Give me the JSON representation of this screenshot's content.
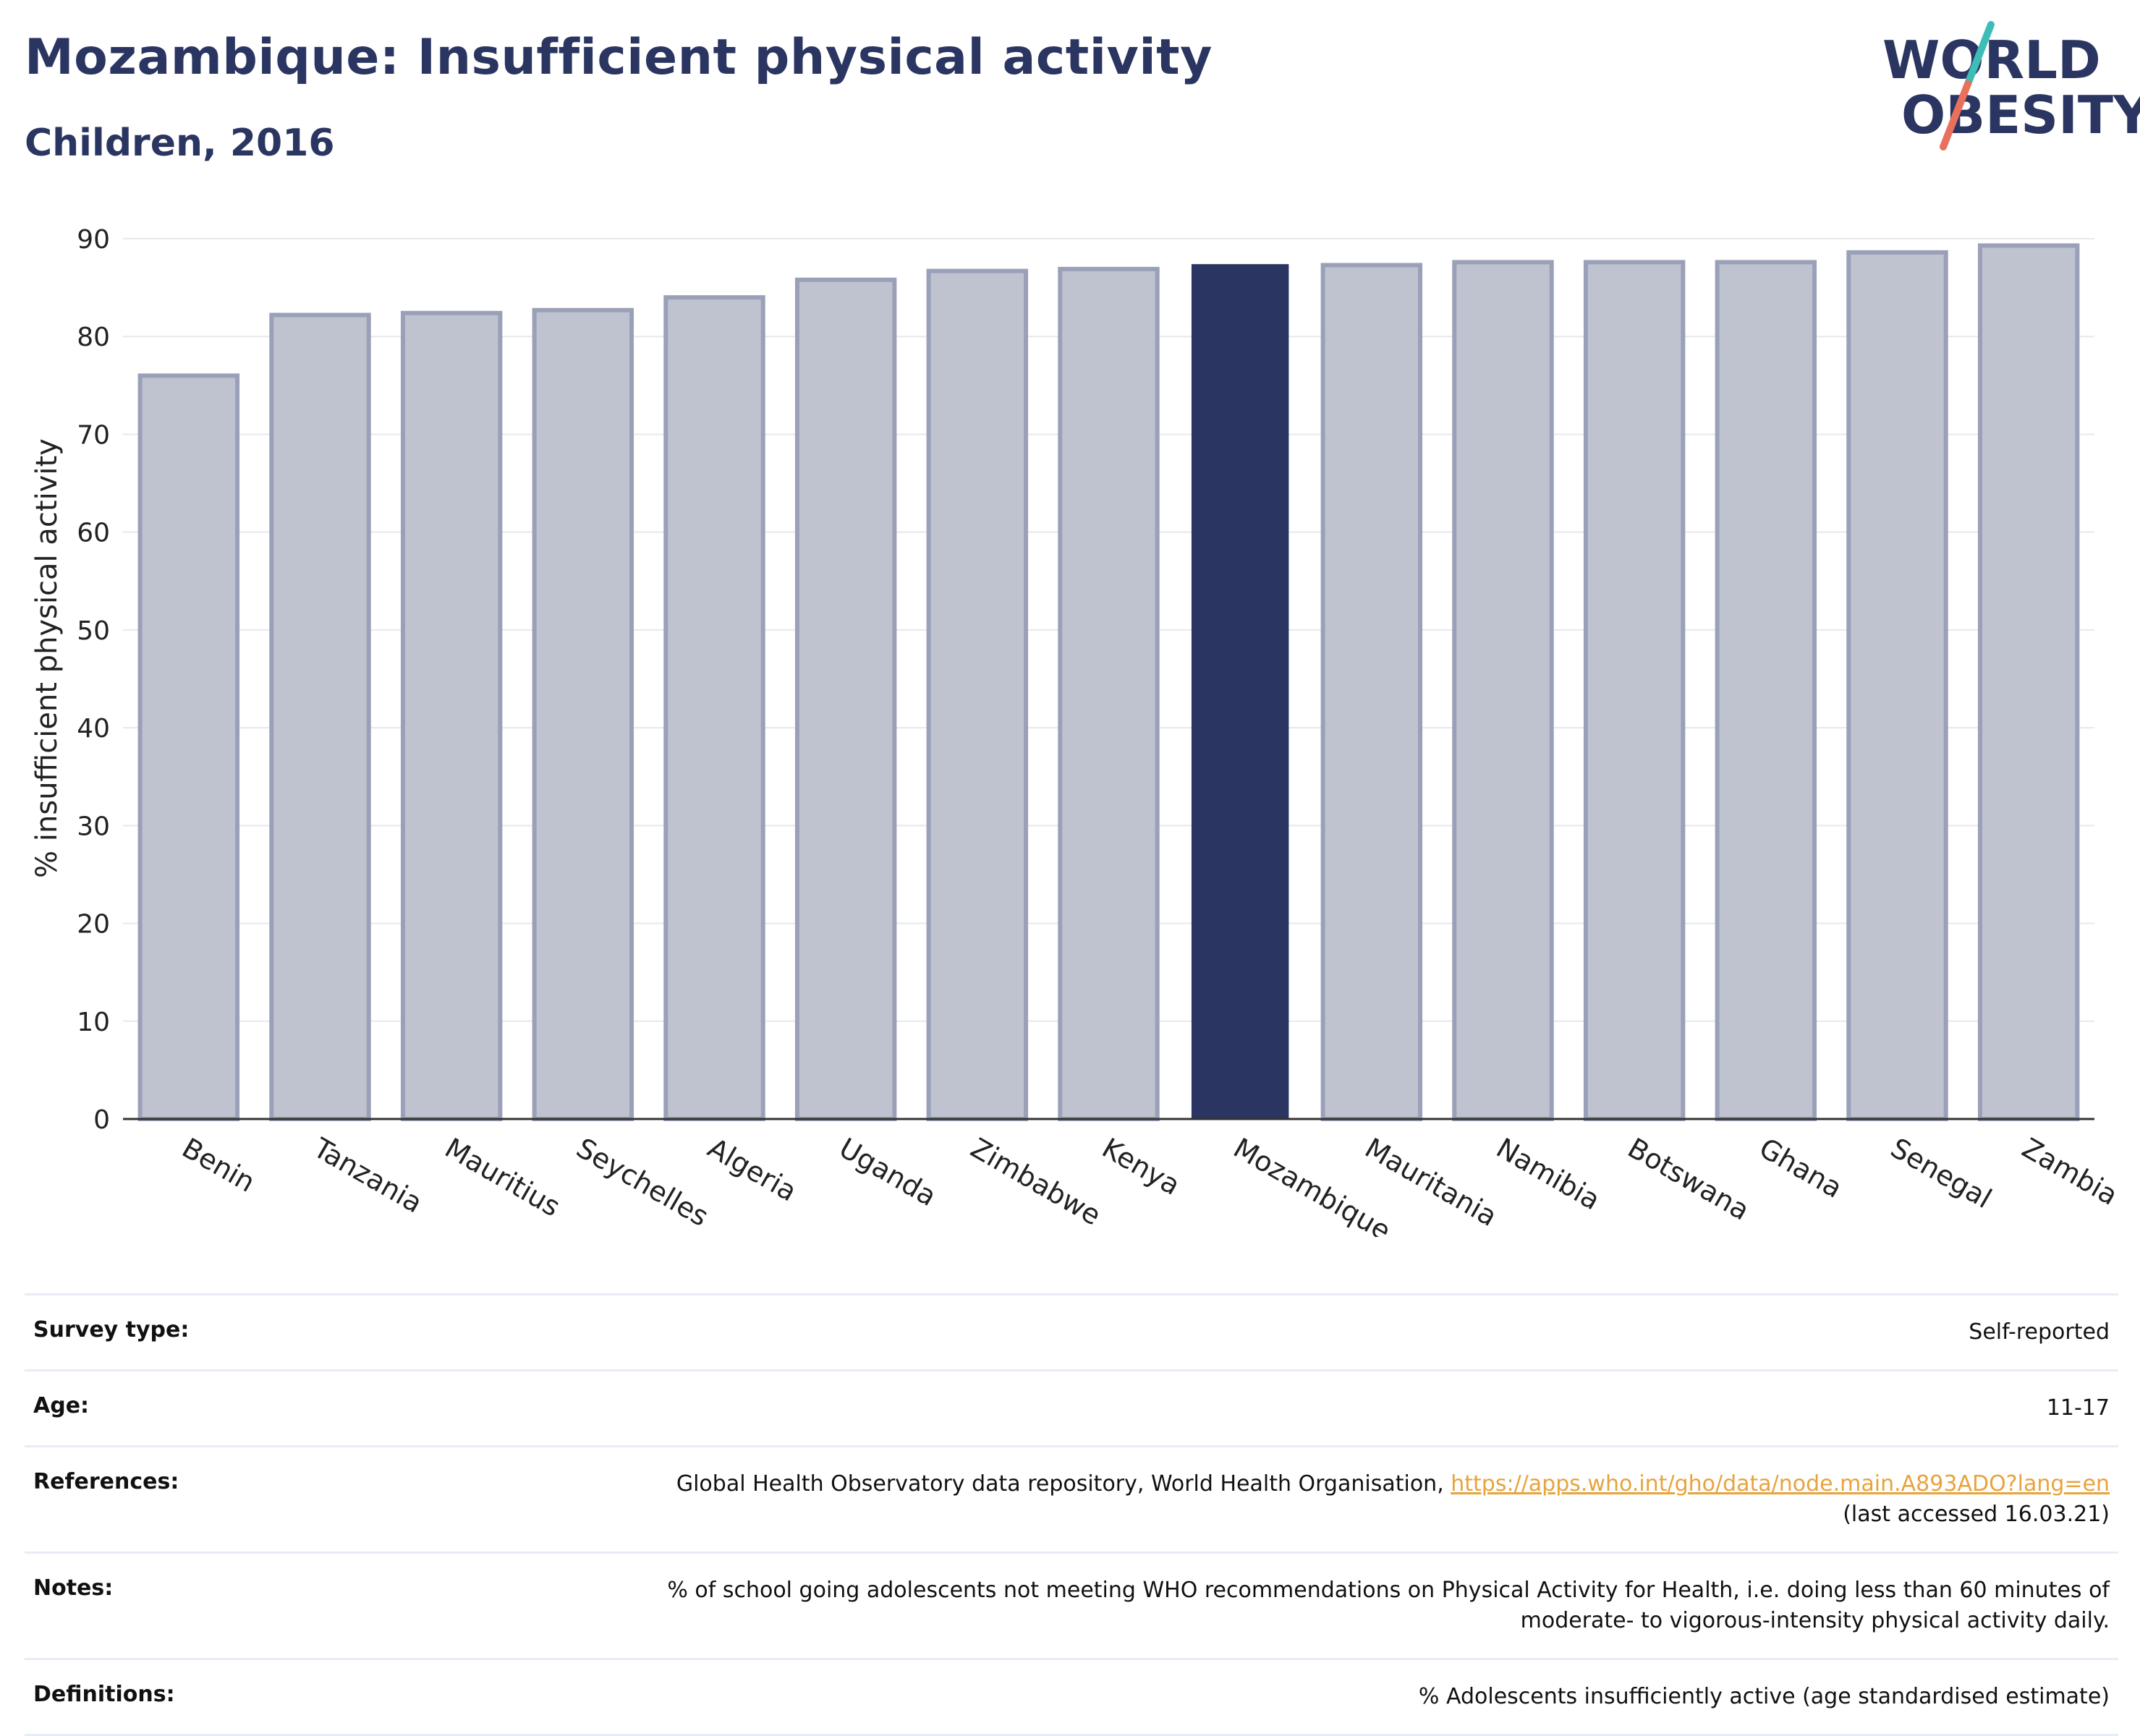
{
  "header": {
    "title": "Mozambique: Insufficient physical activity",
    "subtitle": "Children, 2016"
  },
  "logo": {
    "line1": "WORLD",
    "line2": "OBESITY",
    "text_color": "#2b3561",
    "slash_top_color": "#3dbdb5",
    "slash_bottom_color": "#e8705c"
  },
  "colors": {
    "bar_default_fill": "#bfc2cf",
    "bar_default_stroke": "#9aa0b8",
    "bar_highlight": "#2b3561",
    "grid": "#e6e8ee",
    "axis": "#333333"
  },
  "chart_data": {
    "type": "bar",
    "ylabel": "% insufficient physical activity",
    "xlabel": "",
    "ylim": [
      0,
      90
    ],
    "yticks": [
      0,
      10,
      20,
      30,
      40,
      50,
      60,
      70,
      80,
      90
    ],
    "grid": true,
    "highlight": "Mozambique",
    "categories": [
      "Benin",
      "Tanzania",
      "Mauritius",
      "Seychelles",
      "Algeria",
      "Uganda",
      "Zimbabwe",
      "Kenya",
      "Mozambique",
      "Mauritania",
      "Namibia",
      "Botswana",
      "Ghana",
      "Senegal",
      "Zambia"
    ],
    "values": [
      76.0,
      82.2,
      82.4,
      82.7,
      84.0,
      85.8,
      86.7,
      86.9,
      87.4,
      87.3,
      87.6,
      87.6,
      87.6,
      88.6,
      89.3
    ]
  },
  "meta": {
    "survey_type": {
      "label": "Survey type:",
      "value": "Self-reported"
    },
    "age": {
      "label": "Age:",
      "value": "11-17"
    },
    "references": {
      "label": "References:",
      "text": "Global Health Observatory data repository, World Health Organisation, ",
      "link": "https://apps.who.int/gho/data/node.main.A893ADO?lang=en",
      "accessed": "(last accessed 16.03.21)"
    },
    "notes": {
      "label": "Notes:",
      "line1": "% of school going adolescents not meeting WHO recommendations on Physical Activity for Health, i.e. doing less than 60 minutes of",
      "line2": "moderate- to vigorous-intensity physical activity daily."
    },
    "definitions": {
      "label": "Definitions:",
      "value": "% Adolescents insufficiently active (age standardised estimate)"
    }
  }
}
